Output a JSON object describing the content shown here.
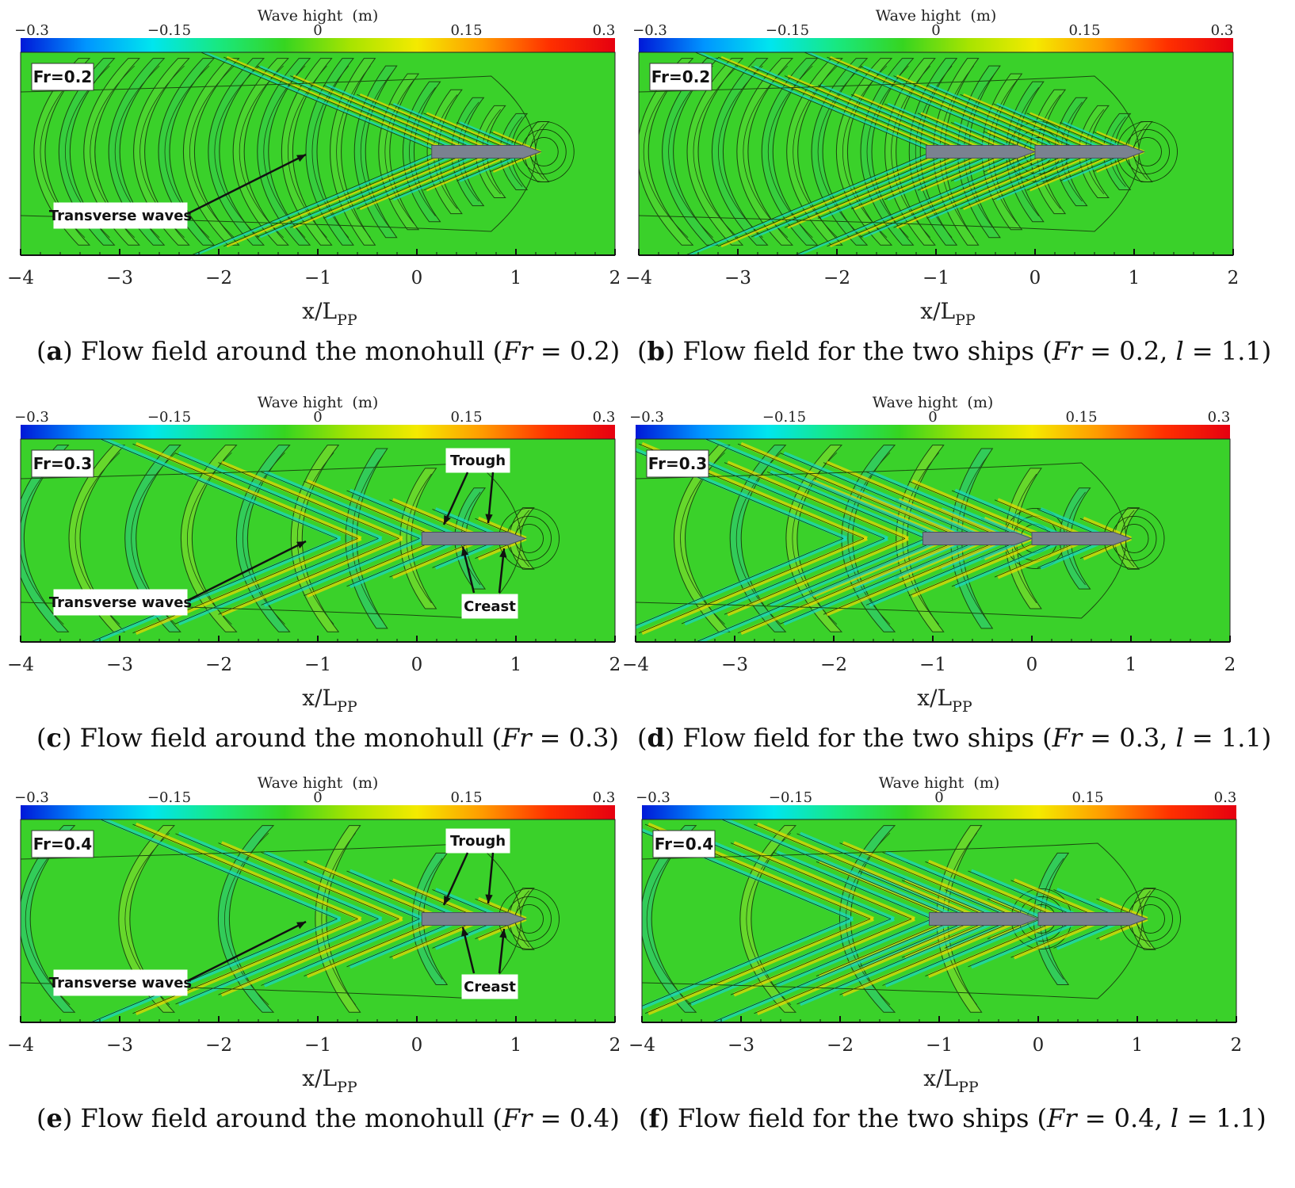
{
  "colorbar": {
    "title": "Wave hight  (m)",
    "ticks": [
      "−0.3",
      "−0.15",
      "0",
      "0.15",
      "0.3"
    ],
    "range": [
      -0.3,
      0.3
    ],
    "colors": [
      "#0018d8",
      "#0096ff",
      "#00e6ee",
      "#18e880",
      "#36d520",
      "#a8e400",
      "#f4ea00",
      "#ff9a00",
      "#ff3000",
      "#e60010"
    ]
  },
  "axis": {
    "ticks": [
      "−4",
      "−3",
      "−2",
      "−1",
      "0",
      "1",
      "2"
    ],
    "xlim": [
      -4,
      2
    ],
    "xlabel_main": "x/L",
    "xlabel_sub": "PP"
  },
  "chart_data": [
    {
      "type": "heatmap",
      "panel": "a",
      "fr_label": "Fr=0.2",
      "annotations": [
        "Transverse waves"
      ],
      "ships_x": [
        [
          0.15,
          1.25
        ]
      ],
      "caption": {
        "letter": "a",
        "text_before": "Flow field around the monohull (",
        "fr_italic": "Fr",
        "text_after": " = 0.2)"
      }
    },
    {
      "type": "heatmap",
      "panel": "b",
      "fr_label": "Fr=0.2",
      "annotations": [],
      "ships_x": [
        [
          -1.1,
          0.0
        ],
        [
          0.0,
          1.1
        ]
      ],
      "caption": {
        "letter": "b",
        "text_before": "Flow field for the two ships (",
        "fr_italic": "Fr",
        "text_after": " = 0.2, ",
        "l_italic": "l",
        "text_end": " = 1.1)"
      }
    },
    {
      "type": "heatmap",
      "panel": "c",
      "fr_label": "Fr=0.3",
      "annotations": [
        "Transverse waves",
        "Trough",
        "Creast"
      ],
      "ships_x": [
        [
          0.05,
          1.1
        ]
      ],
      "caption": {
        "letter": "c",
        "text_before": "Flow field around the monohull (",
        "fr_italic": "Fr",
        "text_after": " = 0.3)"
      }
    },
    {
      "type": "heatmap",
      "panel": "d",
      "fr_label": "Fr=0.3",
      "annotations": [],
      "ships_x": [
        [
          -1.1,
          0.0
        ],
        [
          0.0,
          1.0
        ]
      ],
      "caption": {
        "letter": "d",
        "text_before": "Flow field for the two ships (",
        "fr_italic": "Fr",
        "text_after": " = 0.3, ",
        "l_italic": "l",
        "text_end": " = 1.1)"
      }
    },
    {
      "type": "heatmap",
      "panel": "e",
      "fr_label": "Fr=0.4",
      "annotations": [
        "Transverse waves",
        "Trough",
        "Creast"
      ],
      "ships_x": [
        [
          0.05,
          1.1
        ]
      ],
      "caption": {
        "letter": "e",
        "text_before": "Flow field around the monohull (",
        "fr_italic": "Fr",
        "text_after": " = 0.4)"
      }
    },
    {
      "type": "heatmap",
      "panel": "f",
      "fr_label": "Fr=0.4",
      "annotations": [],
      "ships_x": [
        [
          -1.1,
          0.0
        ],
        [
          0.0,
          1.1
        ]
      ],
      "caption": {
        "letter": "f",
        "text_before": "Flow field for the two ships (",
        "fr_italic": "Fr",
        "text_after": " = 0.4, ",
        "l_italic": "l",
        "text_end": " = 1.1)"
      }
    }
  ]
}
